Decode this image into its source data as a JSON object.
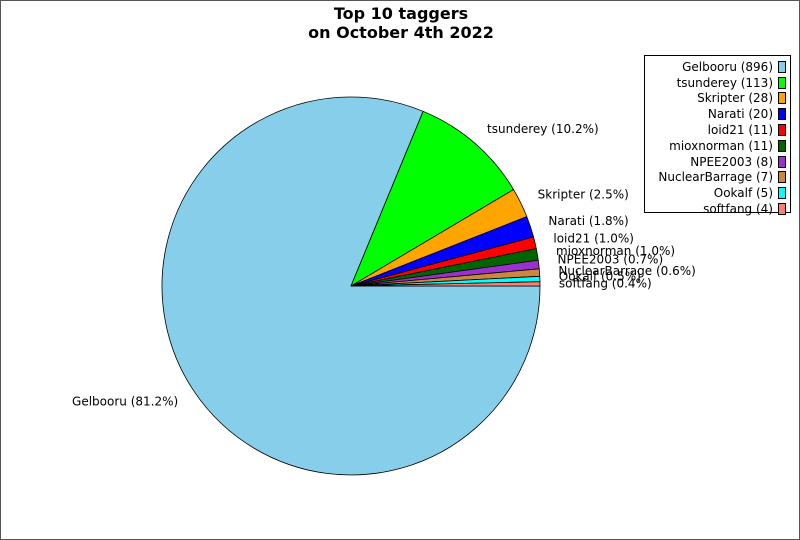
{
  "chart_data": {
    "type": "pie",
    "title": "Top 10 taggers\non October 4th 2022",
    "slices": [
      {
        "name": "Gelbooru",
        "count": 896,
        "percent": 81.2,
        "color": "#87ceeb"
      },
      {
        "name": "tsunderey",
        "count": 113,
        "percent": 10.2,
        "color": "#00ff00"
      },
      {
        "name": "Skripter",
        "count": 28,
        "percent": 2.5,
        "color": "#ffa500"
      },
      {
        "name": "Narati",
        "count": 20,
        "percent": 1.8,
        "color": "#0000ff"
      },
      {
        "name": "loid21",
        "count": 11,
        "percent": 1.0,
        "color": "#ff0000"
      },
      {
        "name": "mioxnorman",
        "count": 11,
        "percent": 1.0,
        "color": "#006400"
      },
      {
        "name": "NPEE2003",
        "count": 8,
        "percent": 0.7,
        "color": "#9932cc"
      },
      {
        "name": "NuclearBarrage",
        "count": 7,
        "percent": 0.6,
        "color": "#cd853f"
      },
      {
        "name": "Ookalf",
        "count": 5,
        "percent": 0.5,
        "color": "#00ffff"
      },
      {
        "name": "softfang",
        "count": 4,
        "percent": 0.4,
        "color": "#fa8072"
      }
    ],
    "legend_labels": [
      "Gelbooru (896)",
      "tsunderey (113)",
      "Skripter (28)",
      "Narati (20)",
      "loid21 (11)",
      "mioxnorman (11)",
      "NPEE2003 (8)",
      "NuclearBarrage (7)",
      "Ookalf (5)",
      "softfang (4)"
    ],
    "slice_labels": [
      "Gelbooru (81.2%)",
      "tsunderey (10.2%)",
      "Skripter (2.5%)",
      "Narati (1.8%)",
      "loid21 (1.0%)",
      "mioxnorman (1.0%)",
      "NPEE2003 (0.7%)",
      "NuclearBarrage (0.6%)",
      "Ookalf (0.5%)",
      "softfang (0.4%)"
    ],
    "start_angle_deg": 0,
    "direction": "clockwise",
    "legend_position": "upper right"
  }
}
